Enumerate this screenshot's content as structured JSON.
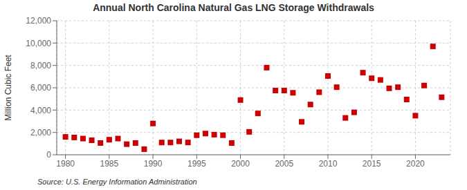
{
  "chart_data": {
    "type": "scatter",
    "title": "Annual North Carolina Natural Gas LNG Storage Withdrawals",
    "ylabel": "Million Cubic Feet",
    "annotations": [
      "Source: U.S. Energy Information Administration"
    ],
    "x": [
      1980,
      1981,
      1982,
      1983,
      1984,
      1985,
      1986,
      1987,
      1988,
      1989,
      1990,
      1991,
      1992,
      1993,
      1994,
      1995,
      1996,
      1997,
      1998,
      1999,
      2000,
      2001,
      2002,
      2003,
      2004,
      2005,
      2006,
      2007,
      2008,
      2009,
      2010,
      2011,
      2012,
      2013,
      2014,
      2015,
      2016,
      2017,
      2018,
      2019,
      2020,
      2021,
      2022,
      2023
    ],
    "values": [
      1600,
      1550,
      1450,
      1300,
      1050,
      1350,
      1450,
      950,
      1050,
      500,
      2800,
      1100,
      1100,
      1200,
      1100,
      1750,
      1900,
      1800,
      1750,
      1050,
      4900,
      2050,
      3700,
      7800,
      5750,
      5750,
      5550,
      2950,
      4500,
      5600,
      7050,
      6050,
      3300,
      3800,
      7350,
      6850,
      6700,
      5950,
      6050,
      4950,
      3500,
      6200,
      9700,
      5150
    ],
    "color": "#cc0000",
    "marker": "square",
    "grid": true,
    "xlim": [
      1979,
      2024
    ],
    "xticks": [
      1980,
      1985,
      1990,
      1995,
      2000,
      2005,
      2010,
      2015,
      2020
    ],
    "ylim": [
      0,
      12000
    ],
    "yticks": [
      0,
      {
        "value": 2000,
        "label": "2,000"
      },
      {
        "value": 4000,
        "label": "4,000"
      },
      {
        "value": 6000,
        "label": "6,000"
      },
      {
        "value": 8000,
        "label": "8,000"
      },
      {
        "value": 10000,
        "label": "10,000"
      },
      {
        "value": 12000,
        "label": "12,000"
      }
    ]
  }
}
